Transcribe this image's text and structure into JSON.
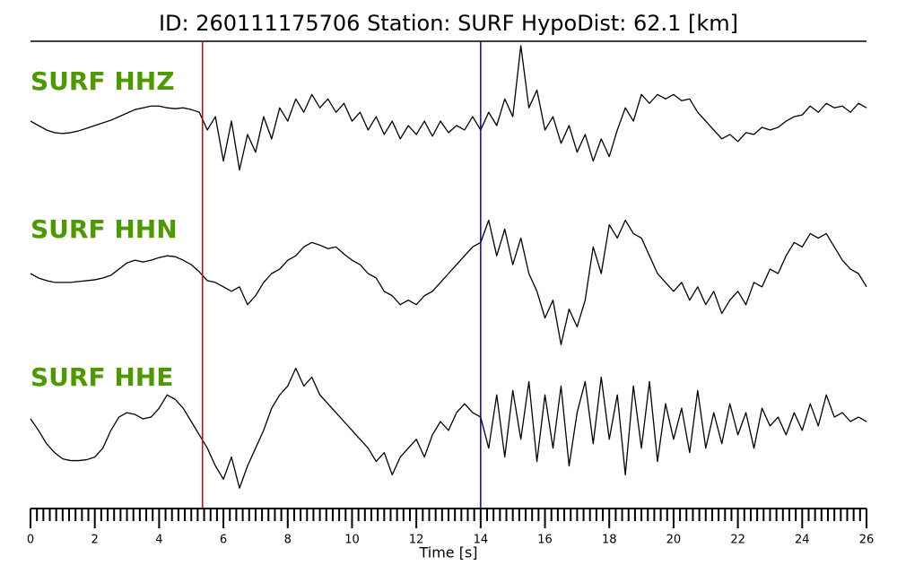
{
  "chart_data": {
    "type": "seismogram",
    "title": "ID: 260111175706   Station: SURF   HypoDist:    62.1 [km]",
    "xlabel": "Time [s]",
    "xlim": [
      0,
      26
    ],
    "xticks": [
      0,
      2,
      4,
      6,
      8,
      10,
      12,
      14,
      16,
      18,
      20,
      22,
      24,
      26
    ],
    "xminorticks": [
      0.2,
      0.4,
      0.6,
      0.8,
      1,
      1.2,
      1.4,
      1.6,
      1.8,
      2.2,
      2.4,
      2.6,
      2.8,
      3,
      3.2,
      3.4,
      3.6,
      3.8,
      4.2,
      4.4,
      4.6,
      4.8,
      5,
      5.2,
      5.4,
      5.6,
      5.8,
      6.2,
      6.4,
      6.6,
      6.8,
      7,
      7.2,
      7.4,
      7.6,
      7.8,
      8.2,
      8.4,
      8.6,
      8.8,
      9,
      9.2,
      9.4,
      9.6,
      9.8,
      10.2,
      10.4,
      10.6,
      10.8,
      11,
      11.2,
      11.4,
      11.6,
      11.8,
      12.2,
      12.4,
      12.6,
      12.8,
      13,
      13.2,
      13.4,
      13.6,
      13.8,
      14.2,
      14.4,
      14.6,
      14.8,
      15,
      15.2,
      15.4,
      15.6,
      15.8,
      16.2,
      16.4,
      16.6,
      16.8,
      17,
      17.2,
      17.4,
      17.6,
      17.8,
      18.2,
      18.4,
      18.6,
      18.8,
      19,
      19.2,
      19.4,
      19.6,
      19.8,
      20.2,
      20.4,
      20.6,
      20.8,
      21,
      21.2,
      21.4,
      21.6,
      21.8,
      22.2,
      22.4,
      22.6,
      22.8,
      23,
      23.2,
      23.4,
      23.6,
      23.8,
      24.2,
      24.4,
      24.6,
      24.8,
      25,
      25.2,
      25.4,
      25.6,
      25.8
    ],
    "ylim": [
      -100,
      100
    ],
    "label_color": "#4c9a00",
    "line_color": "#000000",
    "vlines": [
      {
        "x": 5.35,
        "color": "#e00000"
      },
      {
        "x": 14.0,
        "color": "#0000e0"
      }
    ],
    "x": [
      0,
      0.25,
      0.5,
      0.75,
      1,
      1.25,
      1.5,
      1.75,
      2,
      2.25,
      2.5,
      2.75,
      3,
      3.25,
      3.5,
      3.75,
      4,
      4.25,
      4.5,
      4.75,
      5,
      5.25,
      5.5,
      5.75,
      6,
      6.25,
      6.5,
      6.75,
      7,
      7.25,
      7.5,
      7.75,
      8,
      8.25,
      8.5,
      8.75,
      9,
      9.25,
      9.5,
      9.75,
      10,
      10.25,
      10.5,
      10.75,
      11,
      11.25,
      11.5,
      11.75,
      12,
      12.25,
      12.5,
      12.75,
      13,
      13.25,
      13.5,
      13.75,
      14,
      14.25,
      14.5,
      14.75,
      15,
      15.25,
      15.5,
      15.75,
      16,
      16.25,
      16.5,
      16.75,
      17,
      17.25,
      17.5,
      17.75,
      18,
      18.25,
      18.5,
      18.75,
      19,
      19.25,
      19.5,
      19.75,
      20,
      20.25,
      20.5,
      20.75,
      21,
      21.25,
      21.5,
      21.75,
      22,
      22.25,
      22.5,
      22.75,
      23,
      23.25,
      23.5,
      23.75,
      24,
      24.25,
      24.5,
      24.75,
      25,
      25.25,
      25.5,
      25.75,
      26
    ],
    "series": [
      {
        "name": "SURF HHZ",
        "values": [
          5,
          0,
          -5,
          -8,
          -9,
          -8,
          -6,
          -3,
          0,
          3,
          6,
          10,
          14,
          18,
          20,
          22,
          22,
          20,
          19,
          20,
          18,
          15,
          -5,
          10,
          -40,
          5,
          -50,
          -10,
          -30,
          10,
          -15,
          20,
          5,
          30,
          15,
          35,
          20,
          30,
          15,
          25,
          5,
          15,
          -5,
          10,
          -10,
          5,
          -15,
          0,
          -10,
          5,
          -12,
          5,
          -8,
          0,
          -5,
          10,
          -5,
          15,
          0,
          30,
          10,
          90,
          20,
          40,
          -5,
          10,
          -20,
          0,
          -30,
          -10,
          -40,
          -15,
          -35,
          -5,
          20,
          5,
          35,
          25,
          35,
          30,
          35,
          28,
          30,
          15,
          5,
          -5,
          -15,
          -10,
          -18,
          -8,
          -10,
          -2,
          -5,
          -2,
          5,
          10,
          12,
          22,
          15,
          25,
          20,
          22,
          15,
          25,
          20
        ]
      },
      {
        "name": "SURF HHN",
        "values": [
          0,
          -5,
          -8,
          -10,
          -10,
          -10,
          -9,
          -8,
          -7,
          -5,
          -2,
          5,
          12,
          15,
          13,
          15,
          18,
          20,
          19,
          15,
          10,
          2,
          -8,
          -10,
          -15,
          -20,
          -15,
          -35,
          -25,
          -10,
          0,
          5,
          15,
          20,
          30,
          35,
          32,
          28,
          30,
          22,
          15,
          10,
          0,
          -5,
          -20,
          -25,
          -35,
          -30,
          -35,
          -25,
          -20,
          -10,
          0,
          10,
          20,
          30,
          35,
          60,
          20,
          50,
          10,
          40,
          0,
          -20,
          -50,
          -30,
          -80,
          -40,
          -60,
          -30,
          30,
          0,
          55,
          40,
          60,
          45,
          40,
          20,
          0,
          -10,
          -20,
          -10,
          -30,
          -15,
          -35,
          -20,
          -45,
          -30,
          -20,
          -35,
          -10,
          -15,
          5,
          0,
          20,
          35,
          30,
          45,
          40,
          45,
          30,
          15,
          5,
          0,
          -15
        ]
      },
      {
        "name": "SURF HHE",
        "values": [
          3,
          -10,
          -25,
          -35,
          -42,
          -44,
          -44,
          -43,
          -40,
          -30,
          -10,
          5,
          10,
          8,
          3,
          5,
          15,
          30,
          25,
          15,
          0,
          -15,
          -30,
          -50,
          -65,
          -40,
          -75,
          -50,
          -30,
          -10,
          15,
          30,
          40,
          60,
          40,
          50,
          30,
          20,
          10,
          0,
          -10,
          -20,
          -30,
          -45,
          -35,
          -60,
          -40,
          -30,
          -20,
          -40,
          -15,
          0,
          -10,
          10,
          20,
          10,
          5,
          -30,
          30,
          -40,
          35,
          -20,
          45,
          -45,
          30,
          -30,
          40,
          -50,
          10,
          45,
          -25,
          50,
          -20,
          30,
          -60,
          40,
          -30,
          45,
          -45,
          20,
          -20,
          15,
          -35,
          35,
          -30,
          10,
          -25,
          20,
          -15,
          10,
          -30,
          15,
          -5,
          5,
          -15,
          10,
          -10,
          20,
          -5,
          30,
          5,
          10,
          0,
          5,
          0
        ]
      }
    ]
  }
}
